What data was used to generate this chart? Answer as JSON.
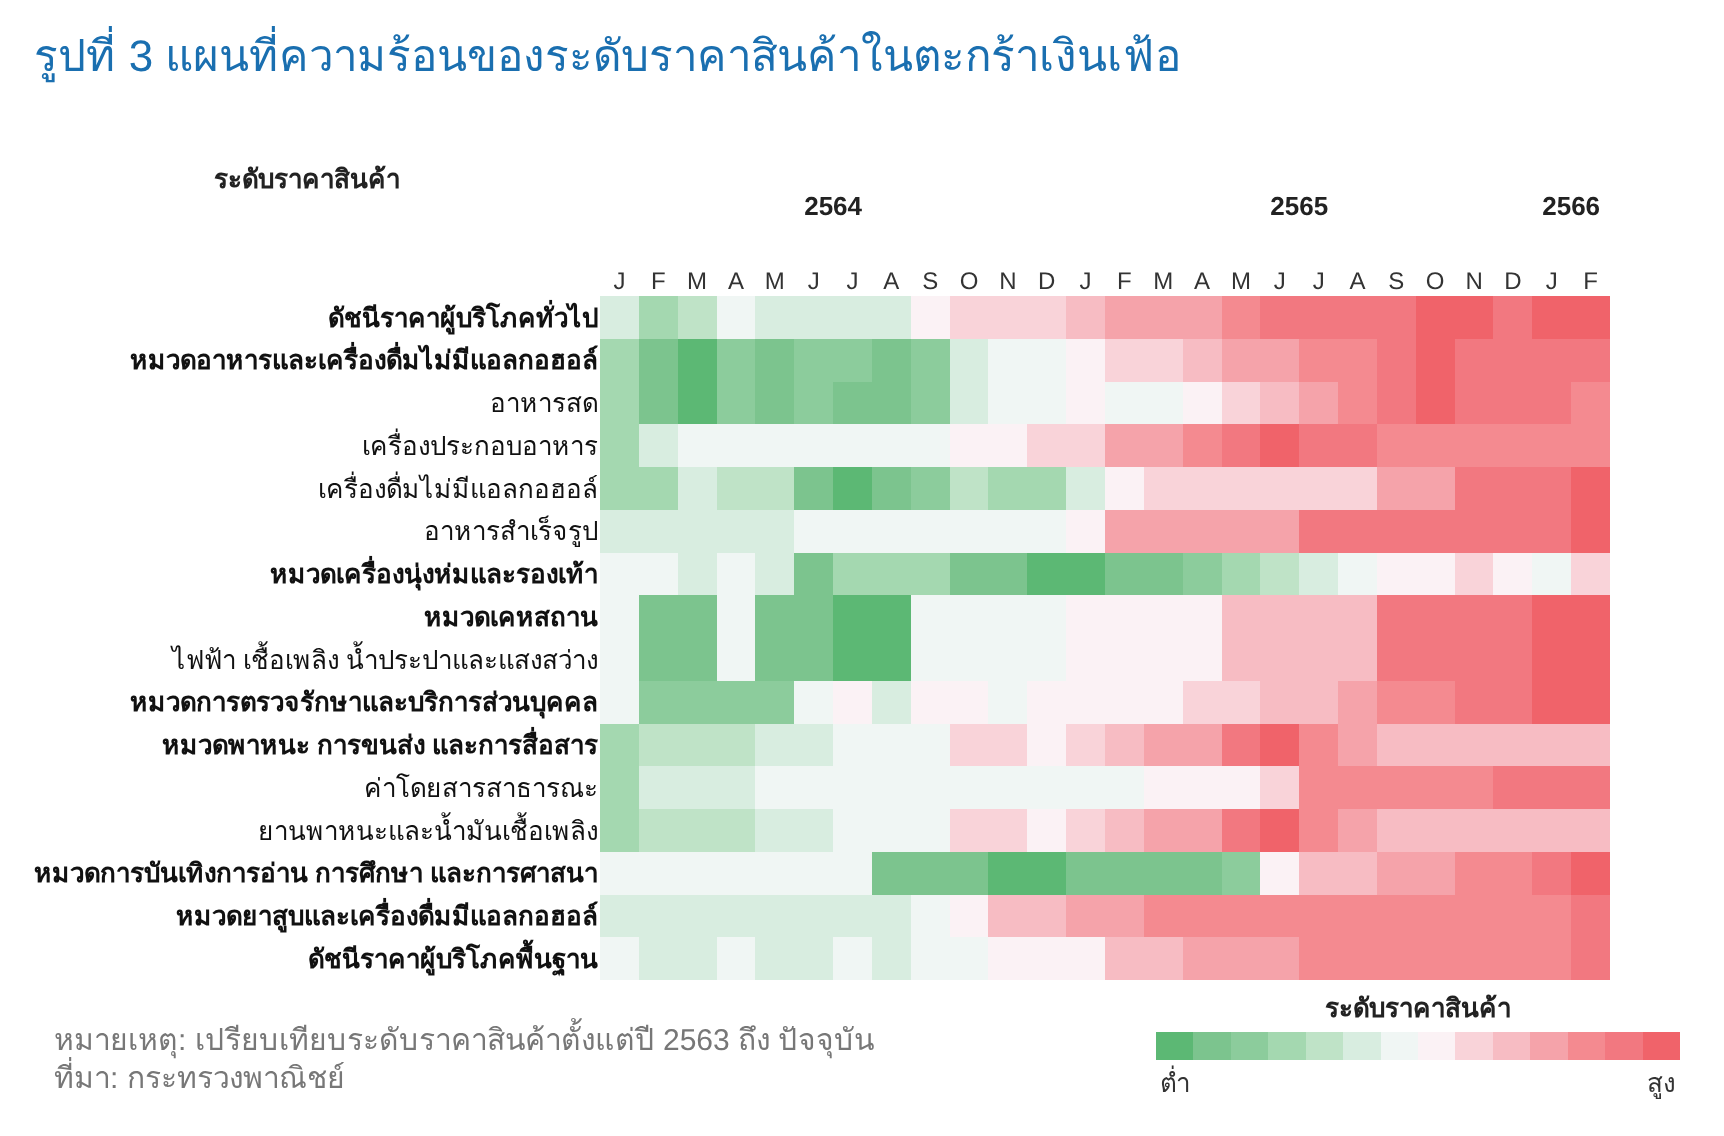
{
  "chart_data": {
    "type": "heatmap",
    "title": "รูปที่ 3 แผนที่ความร้อนของระดับราคาสินค้าในตะกร้าเงินเฟ้อ",
    "ylabel": "ระดับราคาสินค้า",
    "clabel": "ระดับราคาสินค้า",
    "categories": [
      "J",
      "F",
      "M",
      "A",
      "M",
      "J",
      "J",
      "A",
      "S",
      "O",
      "N",
      "D",
      "J",
      "F",
      "M",
      "A",
      "M",
      "J",
      "J",
      "A",
      "S",
      "O",
      "N",
      "D",
      "J",
      "F"
    ],
    "x2lim": [
      2564,
      2566.1667
    ],
    "x2ticks": [
      {
        "value": 2564.5,
        "label": "2564"
      },
      {
        "value": 2565.5,
        "label": "2565"
      },
      {
        "value": 2566.0833,
        "label": "2566"
      }
    ],
    "y_categories": [
      "ดัชนีราคาผู้บริโภคทั่วไป",
      "หมวดอาหารและเครื่องดื่มไม่มีแอลกอฮอล์",
      " อาหารสด",
      " เครื่องประกอบอาหาร",
      " เครื่องดื่มไม่มีแอลกอฮอล์",
      " อาหารสำเร็จรูป",
      "หมวดเครื่องนุ่งห่มและรองเท้า",
      "หมวดเคหสถาน",
      " ไฟฟ้า เชื้อเพลิง น้ำประปาและแสงสว่าง",
      "หมวดการตรวจรักษาและบริการส่วนบุคคล",
      "หมวดพาหนะ การขนส่ง และการสื่อสาร",
      " ค่าโดยสารสาธารณะ",
      " ยานพาหนะและน้ำมันเชื้อเพลิง",
      "หมวดการบันเทิงการอ่าน การศึกษา และการศาสนา",
      "หมวดยาสูบและเครื่องดื่มมีแอลกอฮอล์",
      "ดัชนีราคาผู้บริโภคพื้นฐาน"
    ],
    "cells": [
      [
        5,
        3,
        4,
        6,
        5,
        5,
        5,
        5,
        7,
        8,
        8,
        8,
        9,
        10,
        10,
        10,
        11,
        12,
        12,
        12,
        12,
        13,
        13,
        12,
        13,
        13
      ],
      [
        3,
        1,
        0,
        2,
        1,
        2,
        2,
        1,
        2,
        5,
        6,
        6,
        7,
        8,
        8,
        9,
        10,
        10,
        11,
        11,
        12,
        13,
        12,
        12,
        12,
        12
      ],
      [
        3,
        1,
        0,
        2,
        1,
        2,
        1,
        1,
        2,
        5,
        6,
        6,
        7,
        6,
        6,
        7,
        8,
        9,
        10,
        11,
        12,
        13,
        12,
        12,
        12,
        11
      ],
      [
        3,
        5,
        6,
        6,
        6,
        6,
        6,
        6,
        6,
        7,
        7,
        8,
        8,
        10,
        10,
        11,
        12,
        13,
        12,
        12,
        11,
        11,
        11,
        11,
        11,
        11
      ],
      [
        3,
        3,
        5,
        4,
        4,
        1,
        0,
        1,
        2,
        4,
        3,
        3,
        5,
        7,
        8,
        8,
        8,
        8,
        8,
        8,
        10,
        10,
        12,
        12,
        12,
        13
      ],
      [
        5,
        5,
        5,
        5,
        5,
        6,
        6,
        6,
        6,
        6,
        6,
        6,
        7,
        10,
        10,
        10,
        10,
        10,
        12,
        12,
        12,
        12,
        12,
        12,
        12,
        13
      ],
      [
        6,
        6,
        5,
        6,
        5,
        1,
        3,
        3,
        3,
        1,
        1,
        0,
        0,
        1,
        1,
        2,
        3,
        4,
        5,
        6,
        7,
        7,
        8,
        7,
        6,
        8
      ],
      [
        6,
        1,
        1,
        6,
        1,
        1,
        0,
        0,
        6,
        6,
        6,
        6,
        7,
        7,
        7,
        7,
        9,
        9,
        9,
        9,
        12,
        12,
        12,
        12,
        13,
        13
      ],
      [
        6,
        1,
        1,
        6,
        1,
        1,
        0,
        0,
        6,
        6,
        6,
        6,
        7,
        7,
        7,
        7,
        9,
        9,
        9,
        9,
        12,
        12,
        12,
        12,
        13,
        13
      ],
      [
        6,
        2,
        2,
        2,
        2,
        6,
        7,
        5,
        7,
        7,
        6,
        7,
        7,
        7,
        7,
        8,
        8,
        9,
        9,
        10,
        11,
        11,
        12,
        12,
        13,
        13
      ],
      [
        3,
        4,
        4,
        4,
        5,
        5,
        6,
        6,
        6,
        8,
        8,
        7,
        8,
        9,
        10,
        10,
        12,
        13,
        11,
        10,
        9,
        9,
        9,
        9,
        9,
        9
      ],
      [
        3,
        5,
        5,
        5,
        6,
        6,
        6,
        6,
        6,
        6,
        6,
        6,
        6,
        6,
        7,
        7,
        7,
        8,
        11,
        11,
        11,
        11,
        11,
        12,
        12,
        12
      ],
      [
        3,
        4,
        4,
        4,
        5,
        5,
        6,
        6,
        6,
        8,
        8,
        7,
        8,
        9,
        10,
        10,
        12,
        13,
        11,
        10,
        9,
        9,
        9,
        9,
        9,
        9
      ],
      [
        6,
        6,
        6,
        6,
        6,
        6,
        6,
        1,
        1,
        1,
        0,
        0,
        1,
        1,
        1,
        1,
        2,
        7,
        9,
        9,
        10,
        10,
        11,
        11,
        12,
        13
      ],
      [
        5,
        5,
        5,
        5,
        5,
        5,
        5,
        5,
        6,
        7,
        9,
        9,
        10,
        10,
        11,
        11,
        11,
        11,
        11,
        11,
        11,
        11,
        11,
        11,
        11,
        12
      ],
      [
        6,
        5,
        5,
        6,
        5,
        5,
        6,
        5,
        6,
        6,
        7,
        7,
        7,
        9,
        9,
        10,
        10,
        10,
        11,
        11,
        11,
        11,
        11,
        11,
        11,
        12
      ]
    ],
    "clim": [
      -0.5,
      13.5
    ],
    "cticks": [
      {
        "value": 0,
        "label": "ต่ำ"
      },
      {
        "value": 13,
        "label": "สูง"
      }
    ],
    "annotations": [
      "หมายเหตุ: เปรียบเทียบระดับราคาสินค้าตั้งแต่ปี 2563 ถึง ปัจจุบัน",
      "ที่มา: กระทรวงพาณิชย์"
    ]
  }
}
